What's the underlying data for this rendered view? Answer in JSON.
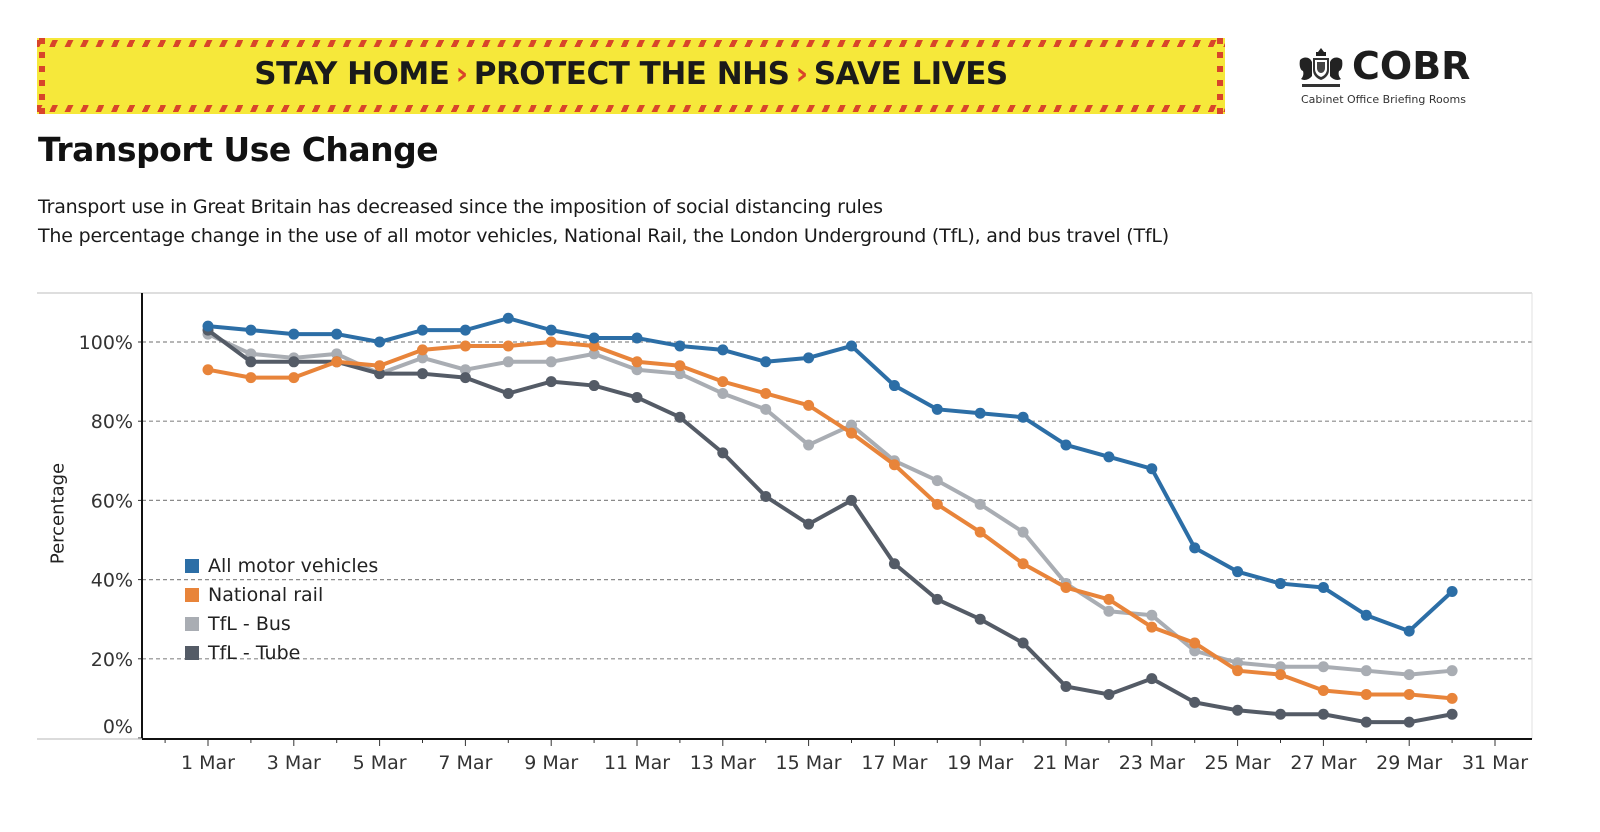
{
  "banner": {
    "parts": [
      "STAY HOME",
      "PROTECT THE NHS",
      "SAVE LIVES"
    ],
    "separator": "›",
    "colors": {
      "background": "#f6e83a",
      "stripe": "#d8452a",
      "text": "#1a1a1a"
    }
  },
  "logo": {
    "icon": "royal-crest-icon",
    "name": "COBR",
    "subtitle": "Cabinet Office Briefing Rooms"
  },
  "header": {
    "title": "Transport Use Change",
    "subtitle_line1": "Transport use in Great Britain has decreased since the imposition of social distancing rules",
    "subtitle_line2": "The percentage change in the use of all motor vehicles, National Rail, the London Underground (TfL), and bus travel (TfL)"
  },
  "chart_data": {
    "type": "line",
    "title": "Transport Use Change",
    "xlabel": "",
    "ylabel": "Percentage",
    "x": [
      "1 Mar",
      "2 Mar",
      "3 Mar",
      "4 Mar",
      "5 Mar",
      "6 Mar",
      "7 Mar",
      "8 Mar",
      "9 Mar",
      "10 Mar",
      "11 Mar",
      "12 Mar",
      "13 Mar",
      "14 Mar",
      "15 Mar",
      "16 Mar",
      "17 Mar",
      "18 Mar",
      "19 Mar",
      "20 Mar",
      "21 Mar",
      "22 Mar",
      "23 Mar",
      "24 Mar",
      "25 Mar",
      "26 Mar",
      "27 Mar",
      "28 Mar",
      "29 Mar",
      "30 Mar"
    ],
    "x_ticks": [
      "1 Mar",
      "3 Mar",
      "5 Mar",
      "7 Mar",
      "9 Mar",
      "11 Mar",
      "13 Mar",
      "15 Mar",
      "17 Mar",
      "19 Mar",
      "21 Mar",
      "23 Mar",
      "25 Mar",
      "27 Mar",
      "29 Mar",
      "31 Mar"
    ],
    "y_ticks": [
      "0%",
      "20%",
      "40%",
      "60%",
      "80%",
      "100%"
    ],
    "y_tick_values": [
      0,
      20,
      40,
      60,
      80,
      100
    ],
    "ylim": [
      -3,
      112
    ],
    "grid": "horizontal-dashed",
    "legend_position": "left-middle",
    "series": [
      {
        "name": "All motor vehicles",
        "color": "#2c6ea6",
        "values": [
          104,
          103,
          102,
          102,
          100,
          103,
          103,
          106,
          103,
          101,
          101,
          99,
          98,
          95,
          96,
          99,
          89,
          83,
          82,
          81,
          74,
          71,
          68,
          48,
          42,
          39,
          38,
          31,
          27,
          37
        ]
      },
      {
        "name": "National rail",
        "color": "#e8843a",
        "values": [
          93,
          91,
          91,
          95,
          94,
          98,
          99,
          99,
          100,
          99,
          95,
          94,
          90,
          87,
          84,
          77,
          69,
          59,
          52,
          44,
          38,
          35,
          28,
          24,
          17,
          16,
          12,
          11,
          11,
          10
        ]
      },
      {
        "name": "TfL - Bus",
        "color": "#a9adb3",
        "values": [
          102,
          97,
          96,
          97,
          92,
          96,
          93,
          95,
          95,
          97,
          93,
          92,
          87,
          83,
          74,
          79,
          70,
          65,
          59,
          52,
          39,
          32,
          31,
          22,
          19,
          18,
          18,
          17,
          16,
          17
        ]
      },
      {
        "name": "TfL - Tube",
        "color": "#545b66",
        "values": [
          103,
          95,
          95,
          95,
          92,
          92,
          91,
          87,
          90,
          89,
          86,
          81,
          72,
          61,
          54,
          60,
          44,
          35,
          30,
          24,
          13,
          11,
          15,
          9,
          7,
          6,
          6,
          4,
          4,
          6
        ]
      }
    ]
  }
}
